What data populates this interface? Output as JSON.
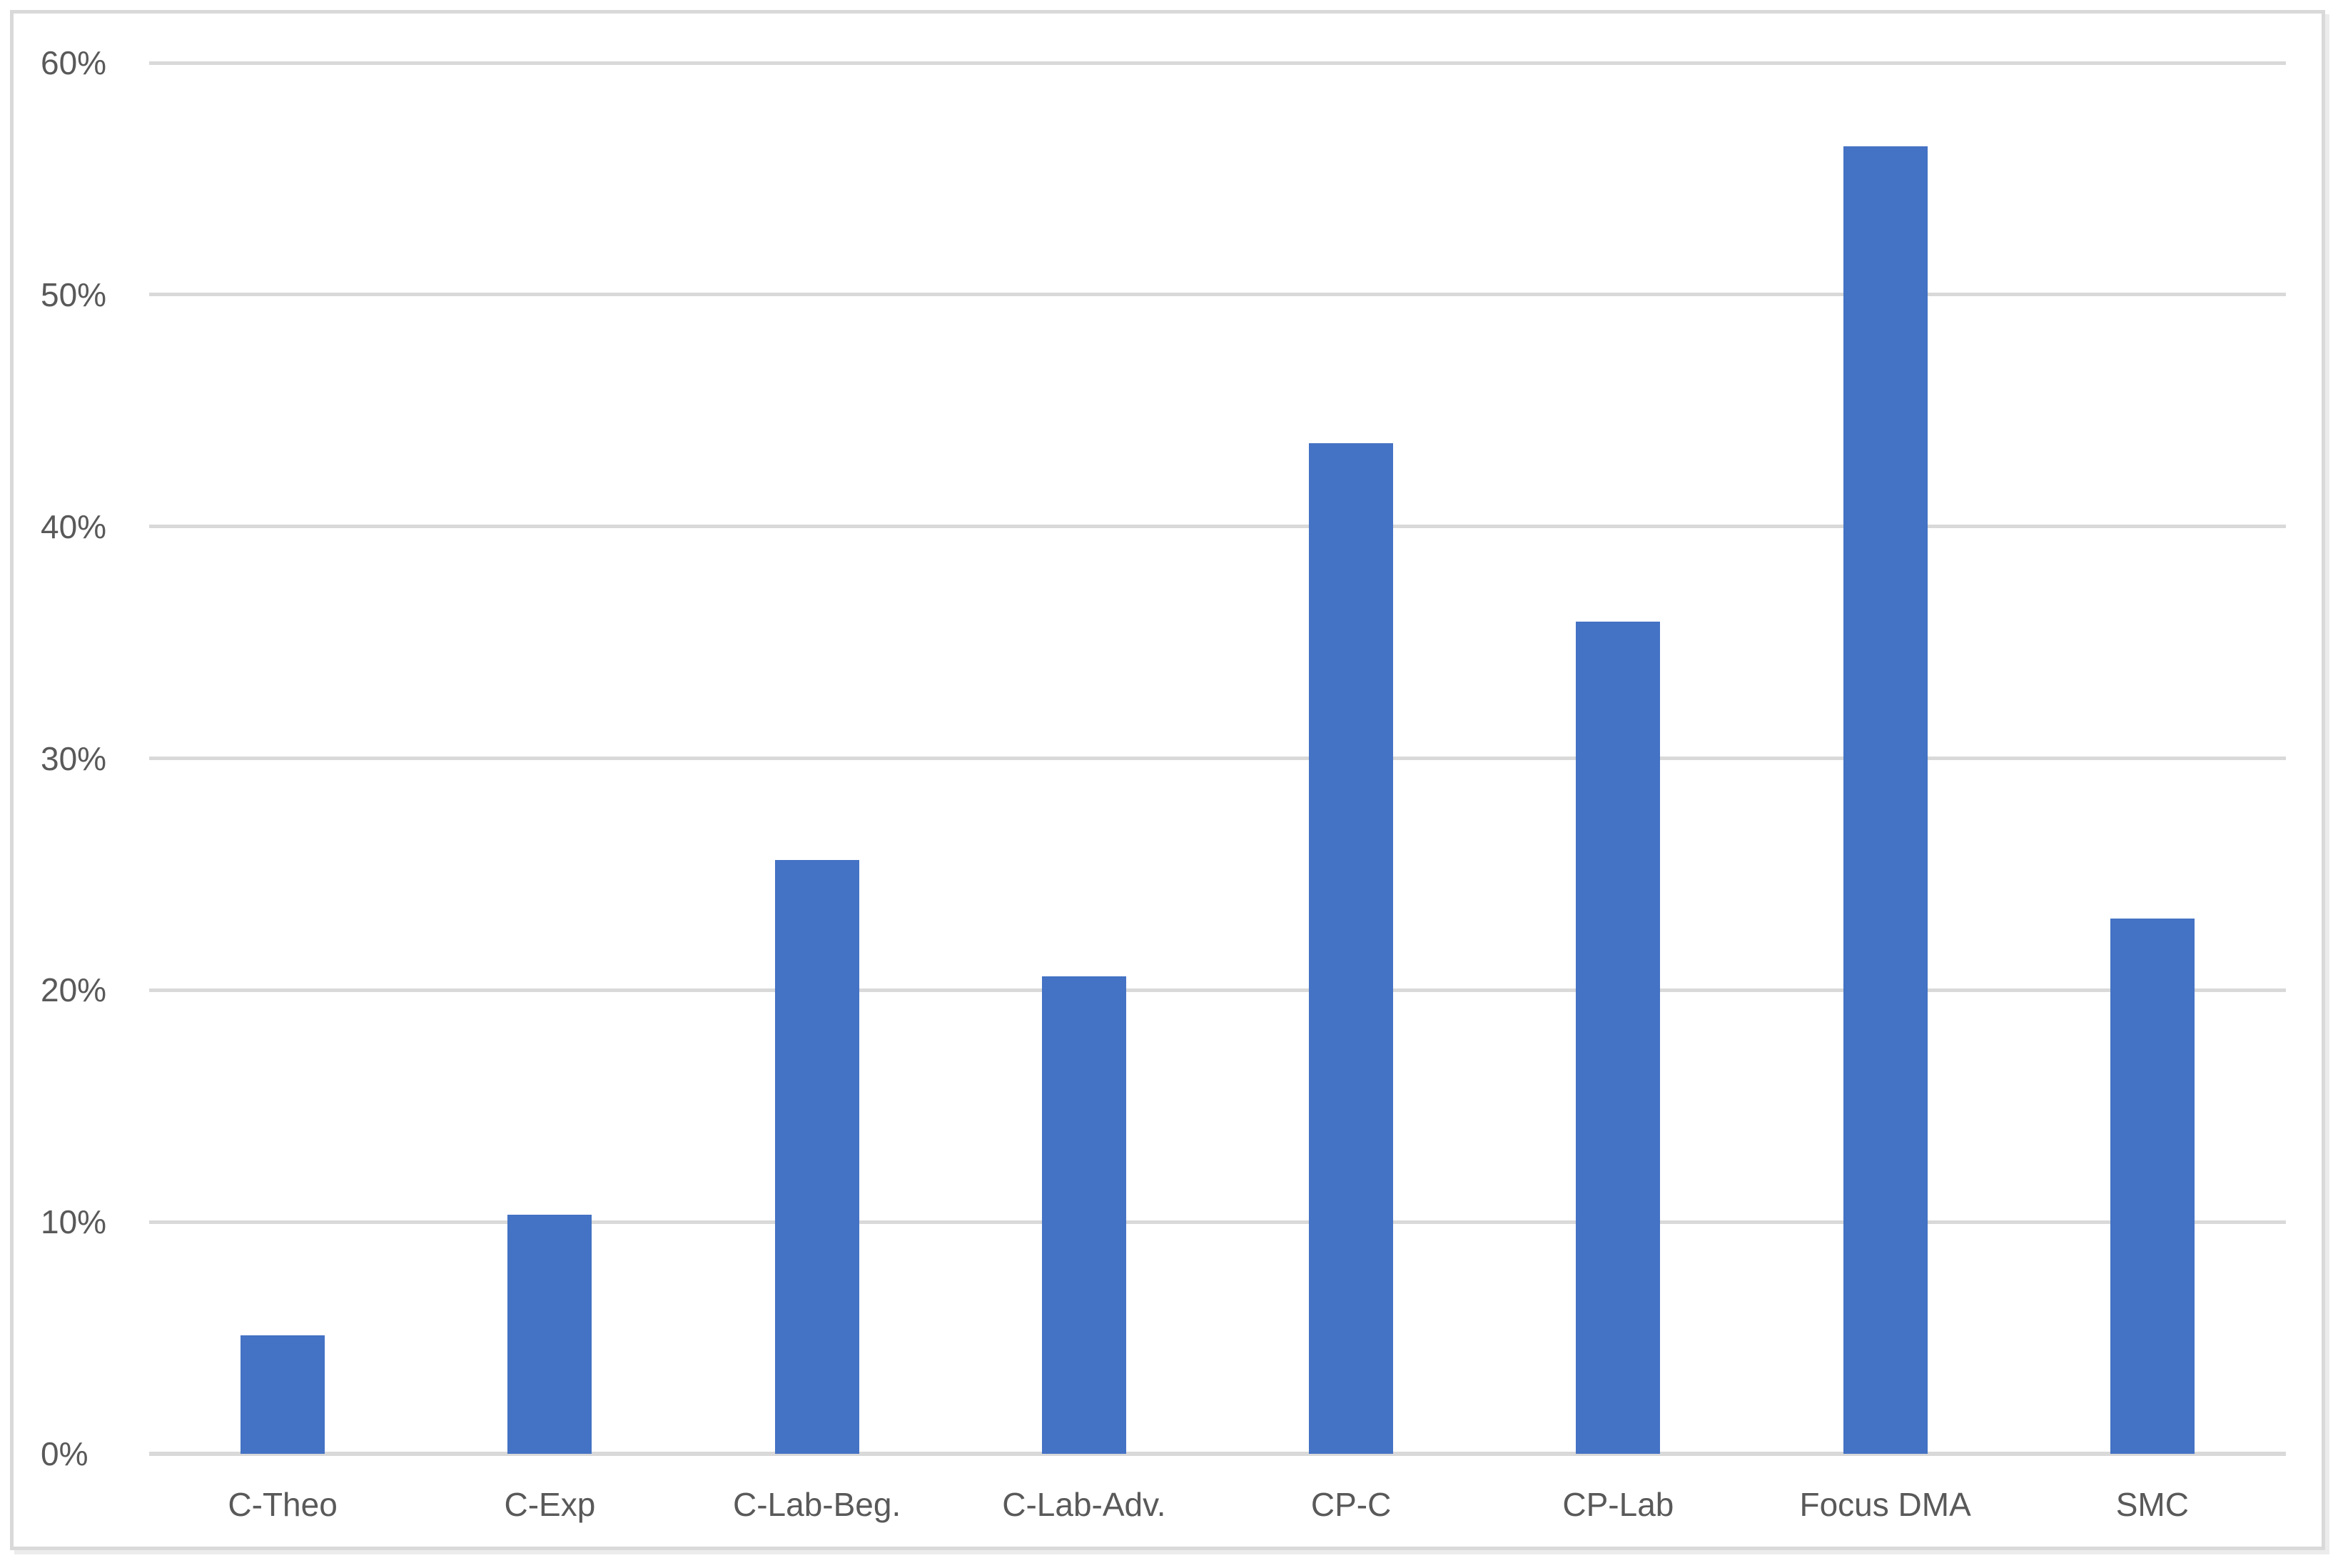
{
  "chart_data": {
    "type": "bar",
    "title": "",
    "xlabel": "",
    "ylabel": "",
    "categories": [
      "C-Theo",
      "C-Exp",
      "C-Lab-Beg.",
      "C-Lab-Adv.",
      "CP-C",
      "CP-Lab",
      "Focus DMA",
      "SMC"
    ],
    "values": [
      5.1,
      10.3,
      25.6,
      20.6,
      43.6,
      35.9,
      56.4,
      23.1
    ],
    "value_unit": "%",
    "ylim": [
      0,
      60
    ],
    "ytick_step": 10,
    "ytick_labels": [
      "0%",
      "10%",
      "20%",
      "30%",
      "40%",
      "50%",
      "60%"
    ],
    "grid": true,
    "legend_position": "none",
    "colors": {
      "bar": "#4472C4",
      "gridline": "#D9D9D9",
      "axis_line": "#D9D9D9",
      "tick_label": "#595959",
      "category_label": "#595959",
      "frame_border": "#D9D9D9",
      "background": "#FFFFFF"
    }
  }
}
